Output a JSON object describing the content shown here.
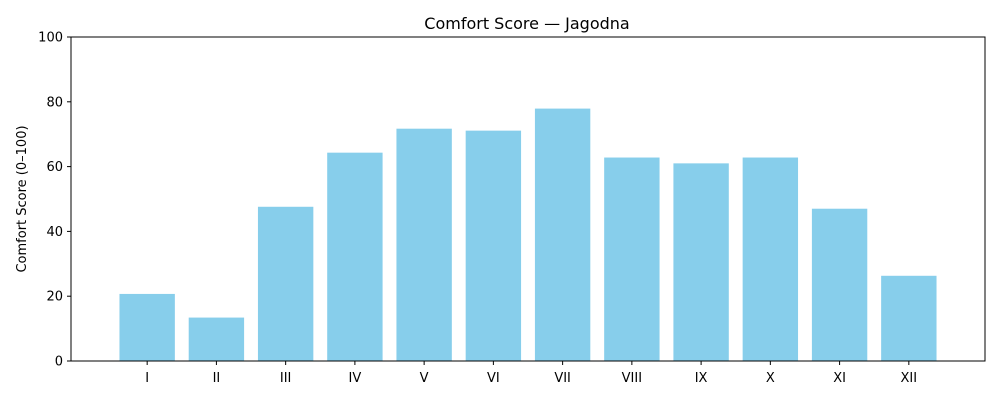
{
  "chart_data": {
    "type": "bar",
    "title": "Comfort Score — Jagodna",
    "xlabel": "",
    "ylabel": "Comfort Score (0–100)",
    "categories": [
      "I",
      "II",
      "III",
      "IV",
      "V",
      "VI",
      "VII",
      "VIII",
      "IX",
      "X",
      "XI",
      "XII"
    ],
    "values": [
      20.7,
      13.4,
      47.6,
      64.3,
      71.7,
      71.1,
      77.9,
      62.8,
      61.0,
      62.8,
      47.0,
      26.3
    ],
    "ylim": [
      0,
      100
    ],
    "yticks": [
      0,
      20,
      40,
      60,
      80,
      100
    ],
    "grid": false,
    "bar_color": "#87ceeb"
  }
}
